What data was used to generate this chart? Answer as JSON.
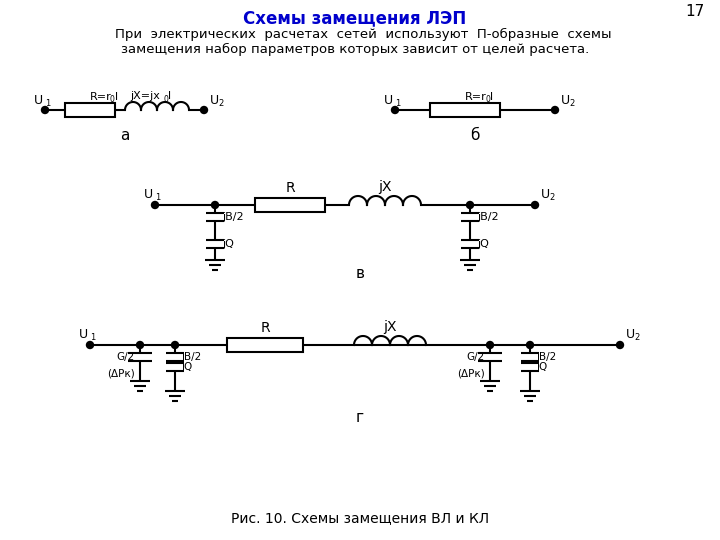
{
  "title": "Схемы замещения ЛЭП",
  "title_color": "#0000CC",
  "page_number": "17",
  "text_line1": "    При  электрических  расчетах  сетей  используют  П-образные  схемы",
  "text_line2": "замещения набор параметров которых зависит от целей расчета.",
  "caption": "Рис. 10. Схемы замещения ВЛ и КЛ",
  "label_a": "а",
  "label_b": "б",
  "label_v": "в",
  "label_g": "г",
  "bg_color": "#FFFFFF",
  "line_color": "#000000"
}
